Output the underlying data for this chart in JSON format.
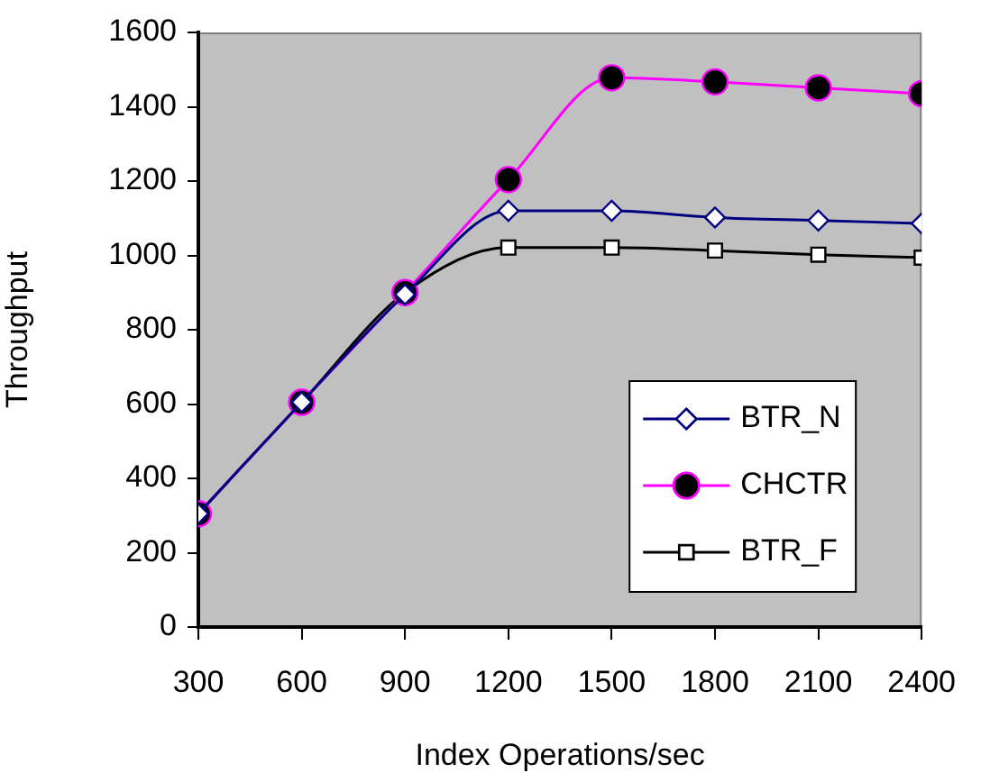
{
  "chart_data": {
    "type": "line",
    "xlabel": "Index Operations/sec",
    "ylabel": "Throughput",
    "x": [
      300,
      600,
      900,
      1200,
      1500,
      1800,
      2100,
      2400
    ],
    "xlim": [
      300,
      2400
    ],
    "xticks": [
      300,
      600,
      900,
      1200,
      1500,
      1800,
      2100,
      2400
    ],
    "ylim": [
      0,
      1600
    ],
    "yticks": [
      0,
      200,
      400,
      600,
      800,
      1000,
      1200,
      1400,
      1600
    ],
    "grid": false,
    "legend": "bottom right",
    "series": [
      {
        "name": "BTR_N",
        "color": "#000080",
        "marker": "diamond",
        "values": [
          305,
          605,
          895,
          1120,
          1120,
          1102,
          1094,
          1086
        ]
      },
      {
        "name": "CHCTR",
        "color": "#ff00ff",
        "marker": "circle",
        "values": [
          305,
          605,
          900,
          1204,
          1478,
          1467,
          1451,
          1435
        ]
      },
      {
        "name": "BTR_F",
        "color": "#000000",
        "marker": "square",
        "values": [
          305,
          605,
          900,
          1021,
          1021,
          1013,
          1002,
          994
        ]
      }
    ]
  }
}
